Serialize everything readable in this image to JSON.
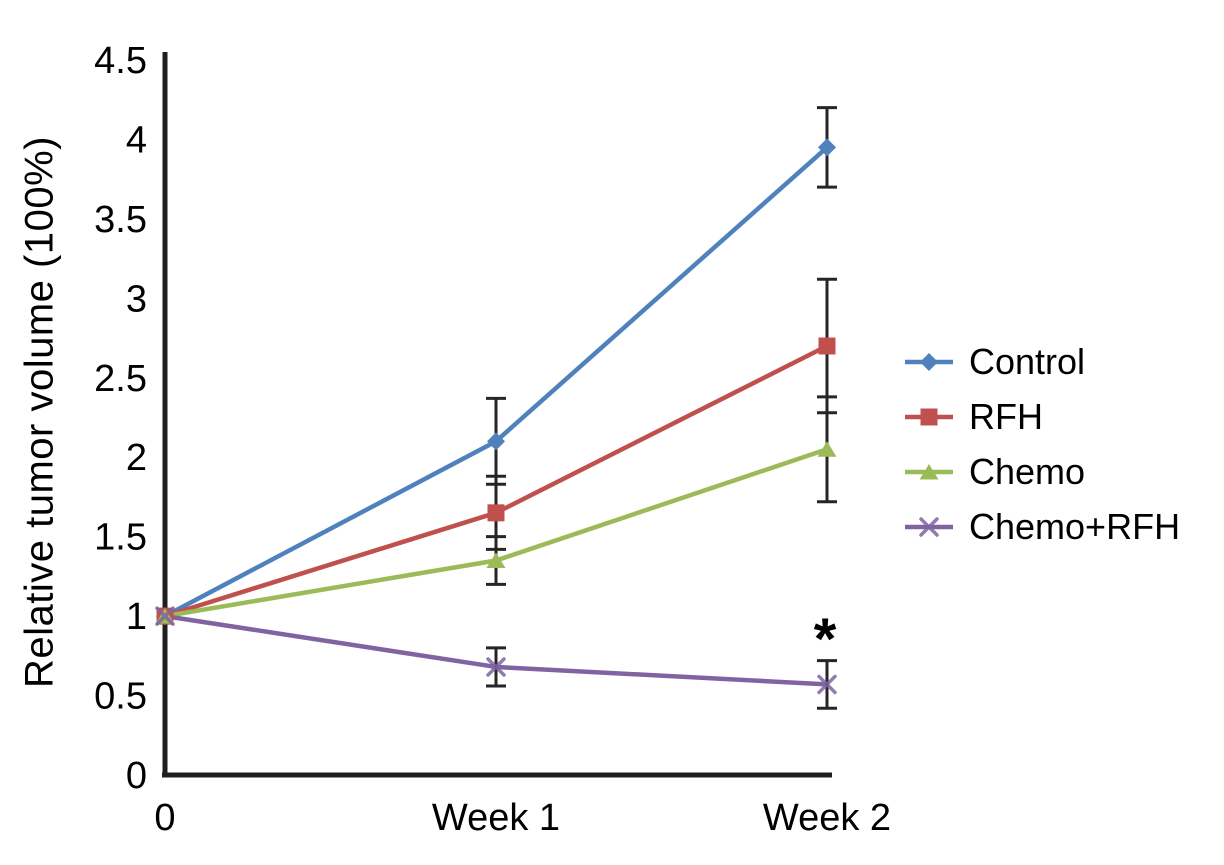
{
  "chart_data": {
    "type": "line",
    "title": "",
    "xlabel": "",
    "ylabel": "Relative tumor volume (100%)",
    "categories": [
      "0",
      "Week 1",
      "Week 2"
    ],
    "yticks": [
      "0",
      "0.5",
      "1",
      "1.5",
      "2",
      "2.5",
      "3",
      "3.5",
      "4",
      "4.5"
    ],
    "ylim": [
      0,
      4.5
    ],
    "grid": false,
    "legend_position": "right",
    "axis_color": "#1f1f1f",
    "error_bar_color": "#262626",
    "text_color": "#000000",
    "series": [
      {
        "name": "Control",
        "color": "#4F81BD",
        "marker": "diamond",
        "values": [
          1,
          2.1,
          3.95
        ],
        "errors": [
          0,
          0.27,
          0.25
        ]
      },
      {
        "name": "RFH",
        "color": "#C0504D",
        "marker": "square",
        "values": [
          1,
          1.65,
          2.7
        ],
        "errors": [
          0,
          0.23,
          0.42
        ]
      },
      {
        "name": "Chemo",
        "color": "#9BBB59",
        "marker": "triangle",
        "values": [
          1,
          1.35,
          2.05
        ],
        "errors": [
          0,
          0.15,
          0.33
        ]
      },
      {
        "name": "Chemo+RFH",
        "color": "#8064A2",
        "marker": "x",
        "values": [
          1,
          0.68,
          0.57
        ],
        "errors": [
          0,
          0.12,
          0.15
        ]
      }
    ],
    "annotations": [
      {
        "text": "*",
        "x_index": 2,
        "y": 0.92,
        "series": "Chemo+RFH"
      }
    ]
  }
}
